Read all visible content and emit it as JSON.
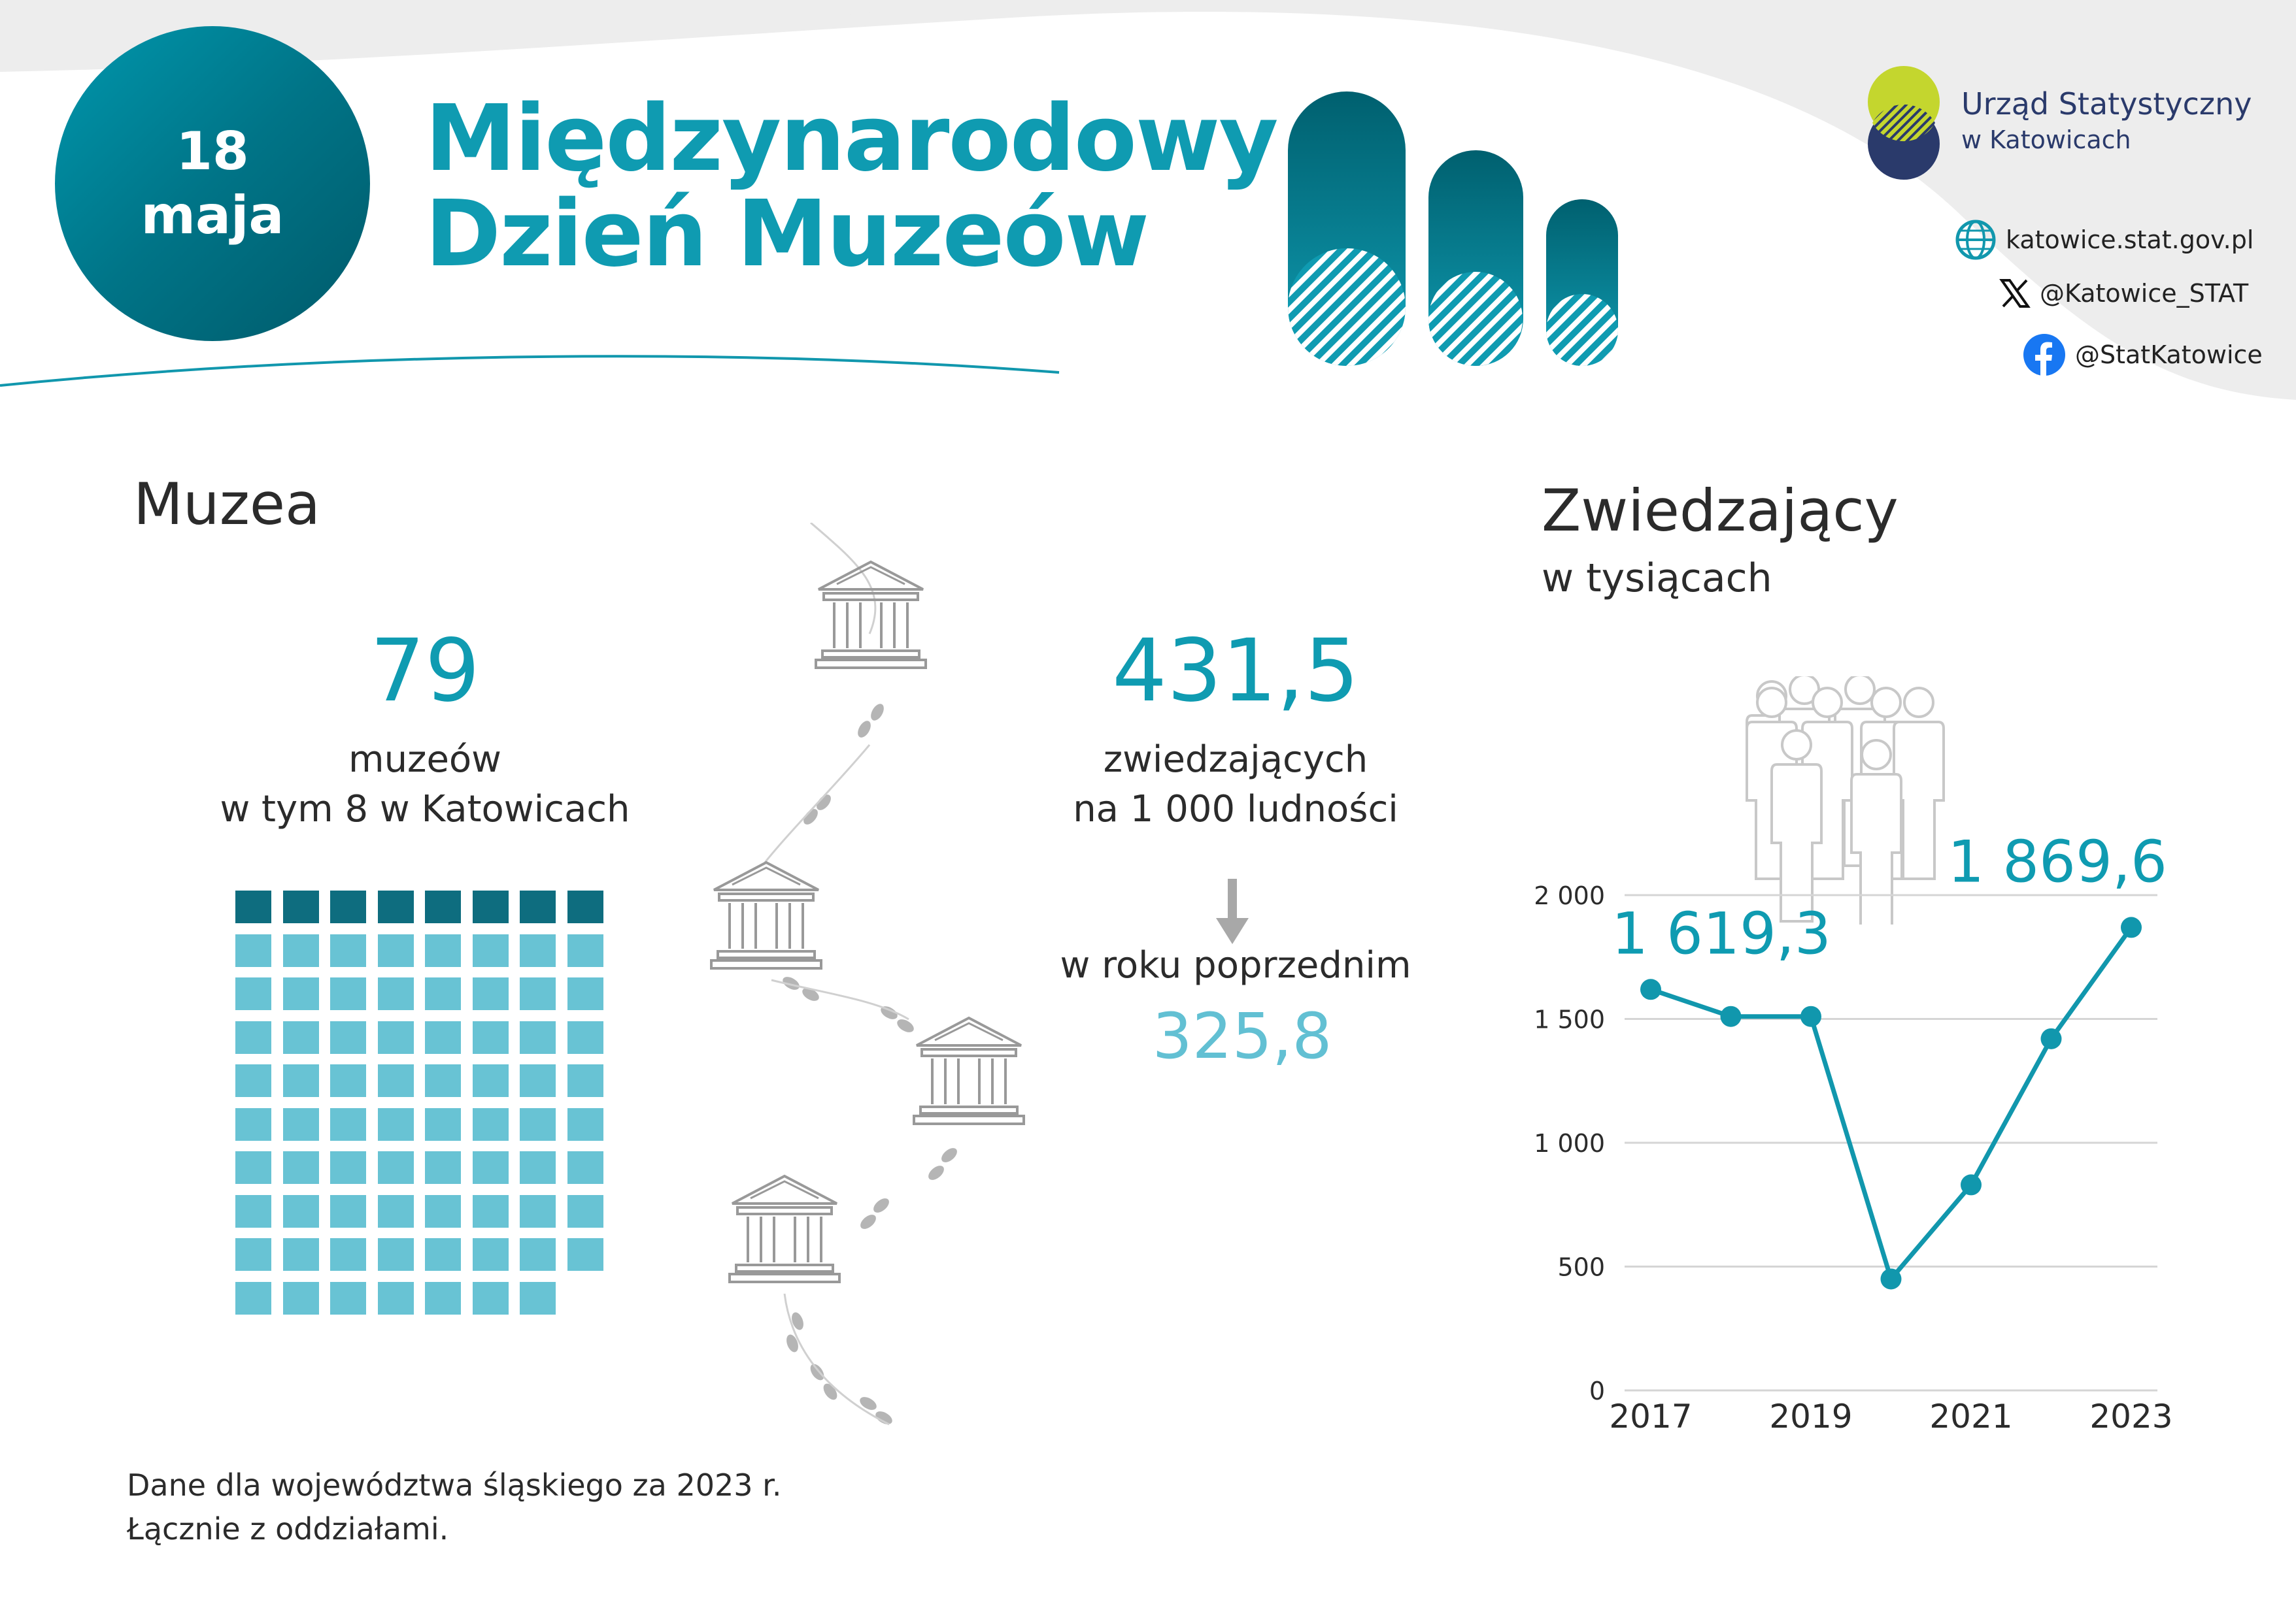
{
  "header": {
    "date_line1": "18",
    "date_line2": "maja",
    "title_line1": "Międzynarodowy",
    "title_line2": "Dzień Muzeów",
    "logo_line1": "Urząd Statystyczny",
    "logo_line2": "w Katowicach",
    "website": "katowice.stat.gov.pl",
    "x_handle": "@Katowice_STAT",
    "facebook": "@StatKatowice"
  },
  "museums": {
    "section_title": "Muzea",
    "count": "79",
    "count_label_line1": "muzeów",
    "count_label_line2": "w tym 8 w Katowicach",
    "waffle_total": 79,
    "waffle_highlight": 8,
    "visitors_rate": "431,5",
    "visitors_rate_line1": "zwiedzających",
    "visitors_rate_line2": "na 1 000 ludności",
    "prev_year_label": "w roku poprzednim",
    "prev_year_value": "325,8"
  },
  "visitors": {
    "section_title": "Zwiedzający",
    "subtitle": "w tysiącach"
  },
  "chart_data": {
    "type": "line",
    "title": "Zwiedzający",
    "subtitle": "w tysiącach",
    "x": [
      2017,
      2018,
      2019,
      2020,
      2021,
      2022,
      2023
    ],
    "x_tick_labels": [
      "2017",
      "2019",
      "2021",
      "2023"
    ],
    "y_tick_labels": [
      "0",
      "500",
      "1 000",
      "1 500",
      "2 000"
    ],
    "y_ticks": [
      0,
      500,
      1000,
      1500,
      2000
    ],
    "ylim": [
      0,
      2000
    ],
    "series": [
      {
        "values": [
          1619.3,
          1510,
          1510,
          450,
          830,
          1420,
          1869.6
        ]
      }
    ],
    "data_labels": {
      "first": "1 619,3",
      "last": "1 869,6"
    },
    "grid": true,
    "line_color": "#1197ad"
  },
  "footnote": {
    "line1": "Dane dla województwa śląskiego za 2023 r.",
    "line2": "Łącznie z oddziałami."
  },
  "colors": {
    "accent": "#0f9bb1",
    "dark_teal": "#0e6d7f",
    "light_teal": "#68c3d4",
    "header_bg": "#ededed",
    "logo_lime": "#c4d62e",
    "logo_navy": "#2a3a6b"
  }
}
